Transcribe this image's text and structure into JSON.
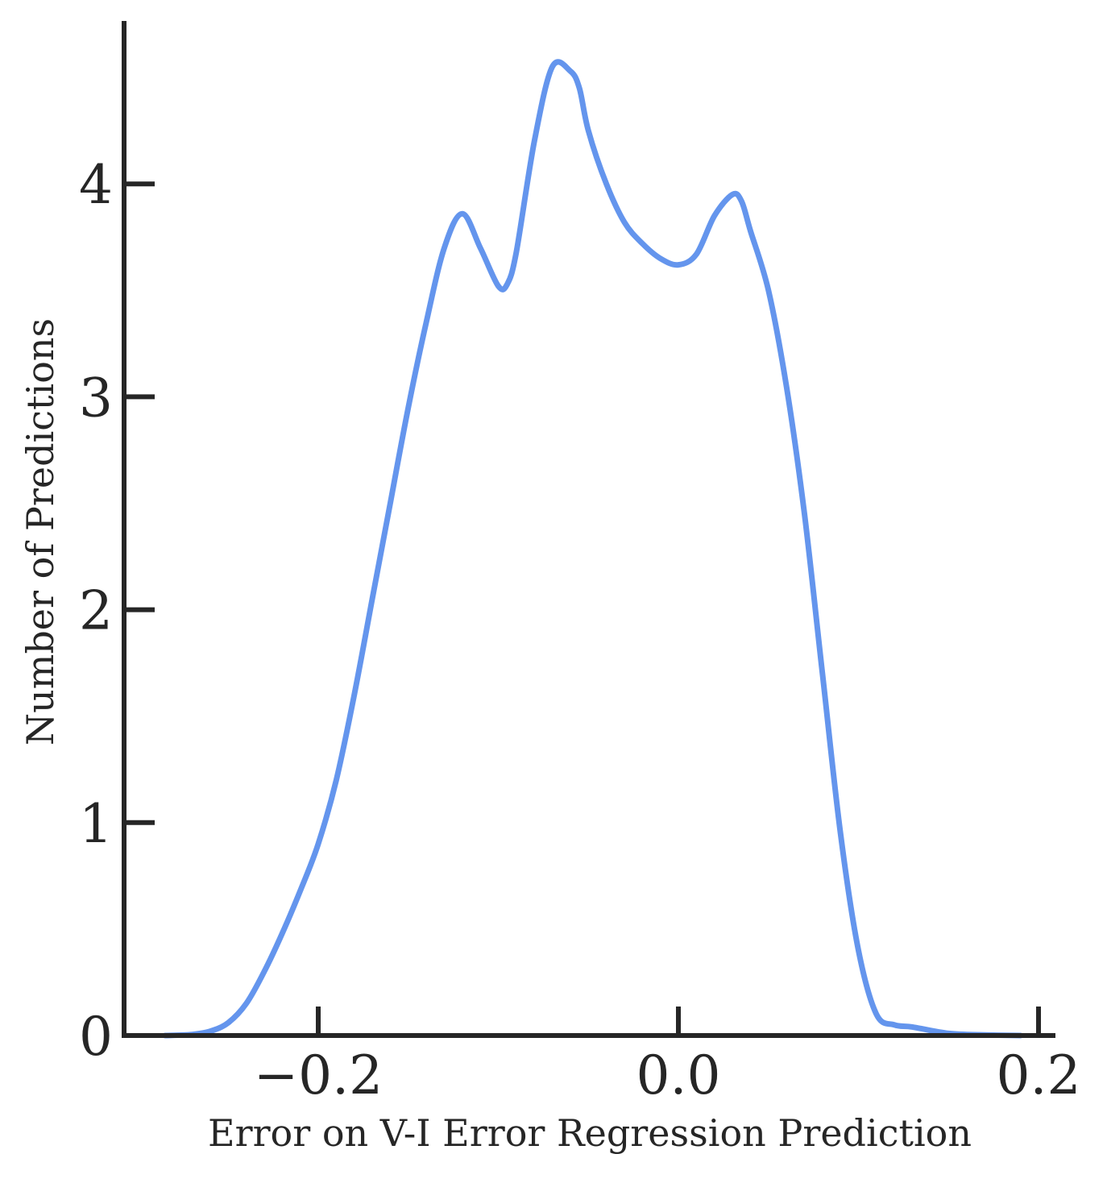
{
  "chart_data": {
    "type": "line",
    "title": "",
    "xlabel": "Error on V-I Error Regression Prediction",
    "ylabel": "Number of Predictions",
    "xlim": [
      -0.31,
      0.21
    ],
    "ylim": [
      0,
      4.77
    ],
    "xticks": [
      -0.2,
      0.0,
      0.2
    ],
    "xtick_labels": [
      "−0.2",
      "0.0",
      "0.2"
    ],
    "yticks": [
      0,
      1,
      2,
      3,
      4
    ],
    "ytick_labels": [
      "0",
      "1",
      "2",
      "3",
      "4"
    ],
    "grid": false,
    "line_color": "#6495ED",
    "axis_color": "#262626",
    "series": [
      {
        "x": [
          -0.285,
          -0.27,
          -0.26,
          -0.25,
          -0.24,
          -0.23,
          -0.22,
          -0.21,
          -0.2,
          -0.19,
          -0.18,
          -0.17,
          -0.16,
          -0.15,
          -0.14,
          -0.13,
          -0.12,
          -0.11,
          -0.1,
          -0.095,
          -0.09,
          -0.08,
          -0.07,
          -0.06,
          -0.055,
          -0.05,
          -0.04,
          -0.03,
          -0.02,
          -0.01,
          0.0,
          0.01,
          0.02,
          0.03,
          0.035,
          0.04,
          0.05,
          0.06,
          0.07,
          0.08,
          0.09,
          0.1,
          0.11,
          0.12,
          0.13,
          0.15,
          0.17,
          0.19
        ],
        "y": [
          0.0,
          0.005,
          0.02,
          0.06,
          0.15,
          0.3,
          0.48,
          0.68,
          0.9,
          1.2,
          1.6,
          2.05,
          2.5,
          2.95,
          3.35,
          3.7,
          3.86,
          3.7,
          3.52,
          3.53,
          3.68,
          4.2,
          4.55,
          4.53,
          4.45,
          4.25,
          4.0,
          3.82,
          3.72,
          3.65,
          3.62,
          3.67,
          3.85,
          3.95,
          3.92,
          3.78,
          3.5,
          3.05,
          2.45,
          1.7,
          0.95,
          0.4,
          0.1,
          0.05,
          0.04,
          0.01,
          0.003,
          0.0
        ]
      }
    ]
  }
}
